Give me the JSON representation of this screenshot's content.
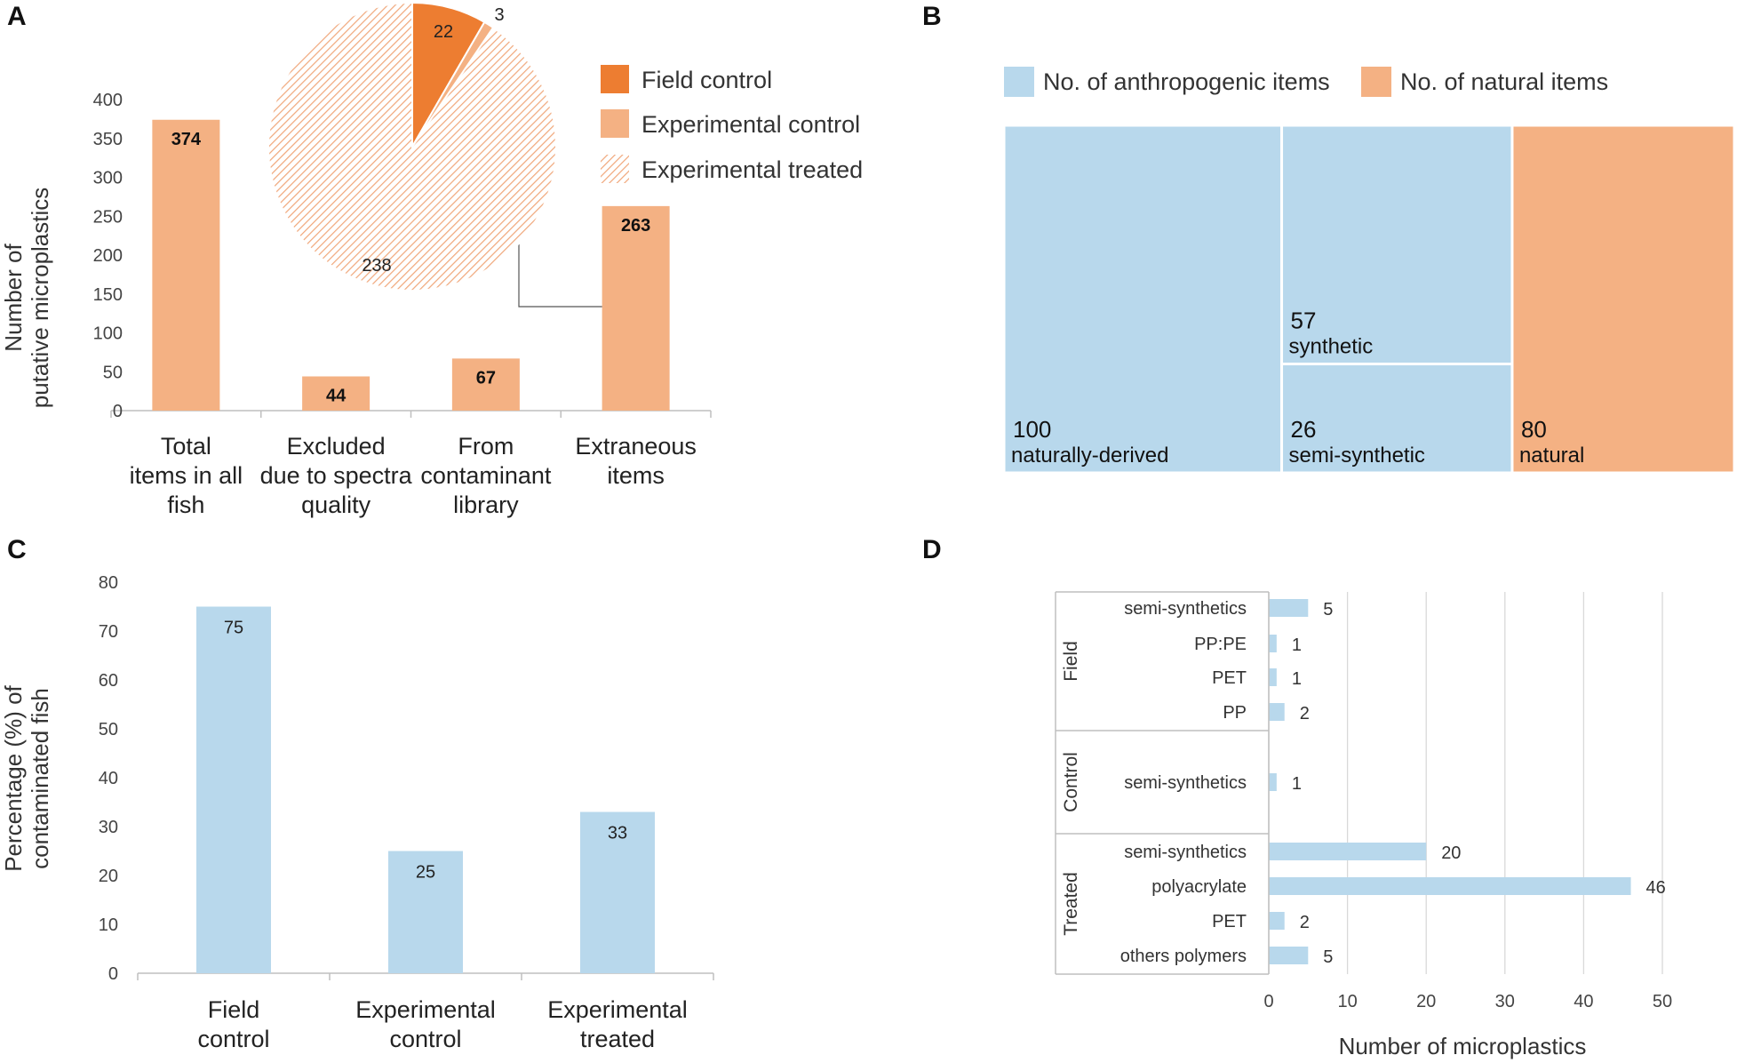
{
  "chart_data": [
    {
      "panel": "A",
      "type": "bar",
      "categories": [
        [
          "Total",
          "items in all",
          "fish"
        ],
        [
          "Excluded",
          "due to spectra",
          "quality"
        ],
        [
          "From",
          "contaminant",
          "library"
        ],
        [
          "Extraneous",
          "items"
        ]
      ],
      "values": [
        374,
        44,
        67,
        263
      ],
      "ylabel": [
        "Number of",
        "putative microplastics"
      ],
      "ylim": [
        0,
        400
      ],
      "yticks": [
        0,
        50,
        100,
        150,
        200,
        250,
        300,
        350,
        400
      ],
      "colors": {
        "bar": "#f4b183",
        "axis": "#bfbfbf"
      },
      "inset": {
        "type": "pie",
        "labels": [
          "Field control",
          "Experimental control",
          "Experimental treated"
        ],
        "values": [
          22,
          3,
          238
        ],
        "colors": [
          "#ed7d31",
          "#f4b183",
          "#f4b183"
        ],
        "hatched": [
          false,
          false,
          true
        ],
        "legend_position": "right"
      }
    },
    {
      "panel": "B",
      "type": "treemap",
      "legend": [
        {
          "label": "No. of anthropogenic items",
          "color": "#b8d8ec"
        },
        {
          "label": "No. of natural items",
          "color": "#f4b183"
        }
      ],
      "items": [
        {
          "name": "naturally-derived",
          "value": 100,
          "group": "anthropogenic"
        },
        {
          "name": "synthetic",
          "value": 57,
          "group": "anthropogenic"
        },
        {
          "name": "semi-synthetic",
          "value": 26,
          "group": "anthropogenic"
        },
        {
          "name": "natural",
          "value": 80,
          "group": "natural"
        }
      ]
    },
    {
      "panel": "C",
      "type": "bar",
      "categories": [
        [
          "Field",
          "control"
        ],
        [
          "Experimental",
          "control"
        ],
        [
          "Experimental",
          "treated"
        ]
      ],
      "values": [
        75,
        25,
        33
      ],
      "ylabel": [
        "Percentage (%) of",
        "contaminated fish"
      ],
      "ylim": [
        0,
        80
      ],
      "yticks": [
        0,
        10,
        20,
        30,
        40,
        50,
        60,
        70,
        80
      ],
      "colors": {
        "bar": "#b8d8ec",
        "axis": "#bfbfbf"
      }
    },
    {
      "panel": "D",
      "type": "bar",
      "orientation": "horizontal",
      "groups": [
        {
          "name": "Field",
          "items": [
            {
              "label": "semi-synthetics",
              "value": 5
            },
            {
              "label": "PP:PE",
              "value": 1
            },
            {
              "label": "PET",
              "value": 1
            },
            {
              "label": "PP",
              "value": 2
            }
          ]
        },
        {
          "name": "Control",
          "items": [
            {
              "label": "semi-synthetics",
              "value": 1
            }
          ]
        },
        {
          "name": "Treated",
          "items": [
            {
              "label": "semi-synthetics",
              "value": 20
            },
            {
              "label": "polyacrylate",
              "value": 46
            },
            {
              "label": "PET",
              "value": 2
            },
            {
              "label": "others polymers",
              "value": 5
            }
          ]
        }
      ],
      "xlabel": "Number of microplastics",
      "xlim": [
        0,
        50
      ],
      "xticks": [
        0,
        10,
        20,
        30,
        40,
        50
      ],
      "colors": {
        "bar": "#b8d8ec",
        "grid": "#d9d9d9"
      }
    }
  ],
  "panel_labels": [
    "A",
    "B",
    "C",
    "D"
  ]
}
